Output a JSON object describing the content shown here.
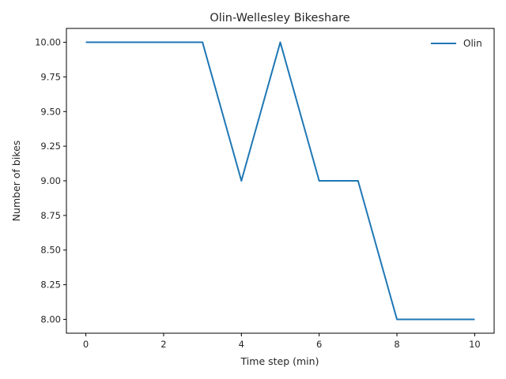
{
  "chart_data": {
    "type": "line",
    "title": "Olin-Wellesley Bikeshare",
    "xlabel": "Time step (min)",
    "ylabel": "Number of bikes",
    "xlim": [
      -0.5,
      10.5
    ],
    "ylim": [
      7.9,
      10.1
    ],
    "x_ticks": [
      0,
      2,
      4,
      6,
      8,
      10
    ],
    "y_ticks": [
      8.0,
      8.25,
      8.5,
      8.75,
      9.0,
      9.25,
      9.5,
      9.75,
      10.0
    ],
    "grid": false,
    "legend_position": "upper-right",
    "series": [
      {
        "name": "Olin",
        "color": "#1f77b4",
        "x": [
          0,
          1,
          2,
          3,
          4,
          5,
          6,
          7,
          8,
          9,
          10
        ],
        "y": [
          10,
          10,
          10,
          10,
          9,
          10,
          9,
          9,
          8,
          8,
          8
        ]
      }
    ]
  }
}
